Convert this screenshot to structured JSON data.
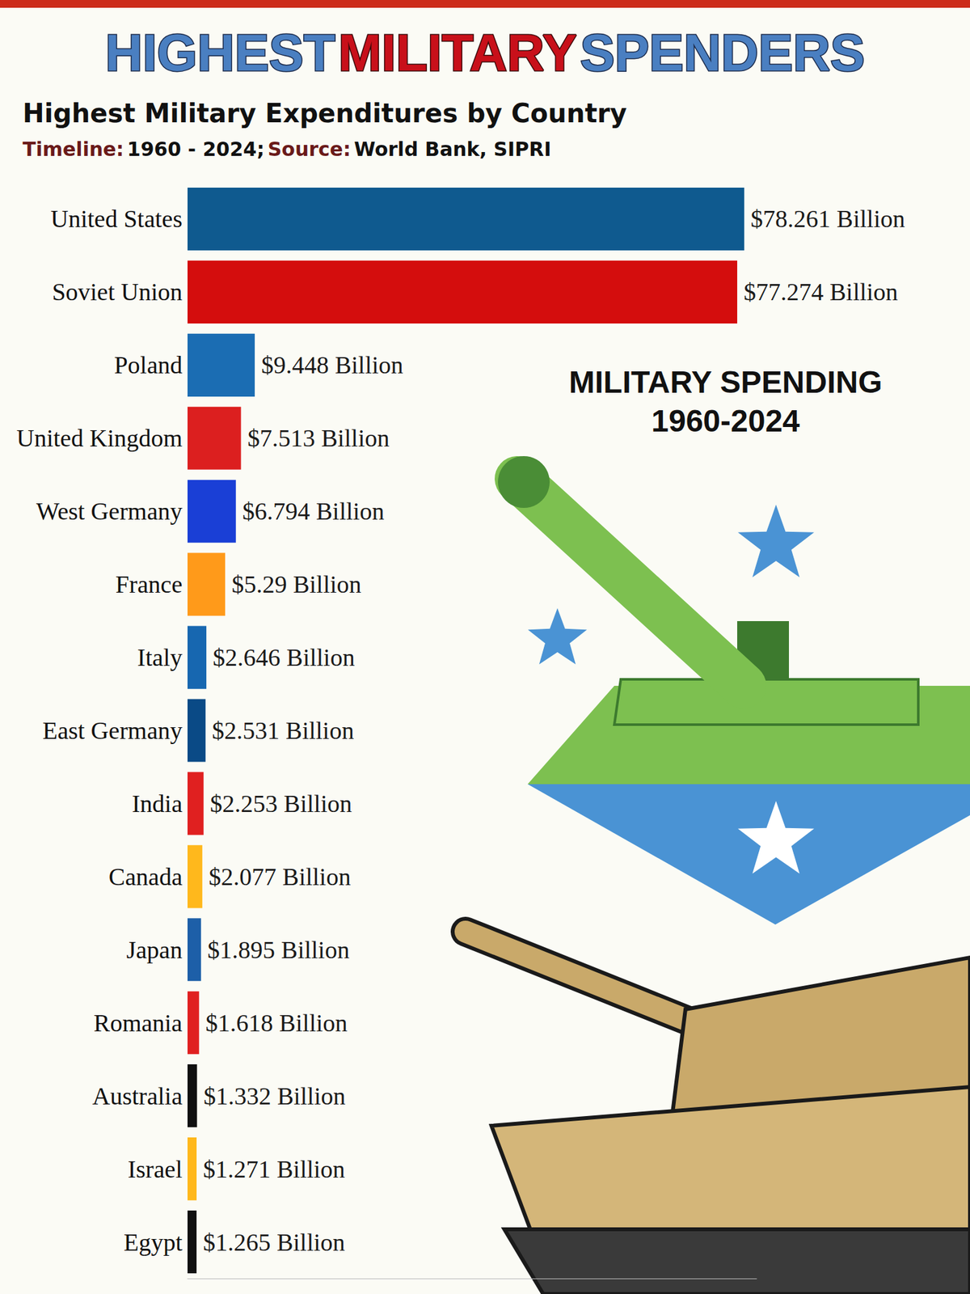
{
  "chart_data": {
    "type": "bar",
    "orientation": "horizontal",
    "title": "HIGHEST MILITARY SPENDERS",
    "subtitle": "Highest Military Expenditures by Country",
    "caption": [
      {
        "label": "Timeline:",
        "text": "1960 - 2024;"
      },
      {
        "label": "Source:",
        "text": "World Bank, SIPRI"
      }
    ],
    "annotations": [
      "MILITARY SPENDING",
      "1960-2024"
    ],
    "categories": [
      "United States",
      "Soviet Union",
      "Poland",
      "United Kingdom",
      "West Germany",
      "France",
      "Italy",
      "East Germany",
      "India",
      "Canada",
      "Japan",
      "Romania",
      "Australia",
      "Israel",
      "Egypt"
    ],
    "values": [
      78.261,
      77.274,
      9.448,
      7.513,
      6.794,
      5.29,
      2.646,
      2.531,
      2.253,
      2.077,
      1.895,
      1.618,
      1.332,
      1.271,
      1.265
    ],
    "value_labels": [
      "$78.261 Billion",
      "$77.274 Billion",
      "$9.448 Billion",
      "$7.513 Billion",
      "$6.794 Billion",
      "$5.29 Billion",
      "$2.646 Billion",
      "$2.531 Billion",
      "$2.253 Billion",
      "$2.077 Billion",
      "$1.895 Billion",
      "$1.618 Billion",
      "$1.332 Billion",
      "$1.271 Billion",
      "$1.265 Billion"
    ],
    "colors": [
      "#0f5a8f",
      "#d40d0d",
      "#1b6db3",
      "#dc1f1f",
      "#1a3fd6",
      "#ff9a1a",
      "#1767b0",
      "#0a4a86",
      "#e02020",
      "#ffb81c",
      "#1d5fa8",
      "#e02020",
      "#111111",
      "#ffb81c",
      "#111111"
    ],
    "xlim": [
      0,
      80
    ],
    "xticks": [],
    "data_labels": true,
    "tick_labels": "y",
    "grid": false
  }
}
